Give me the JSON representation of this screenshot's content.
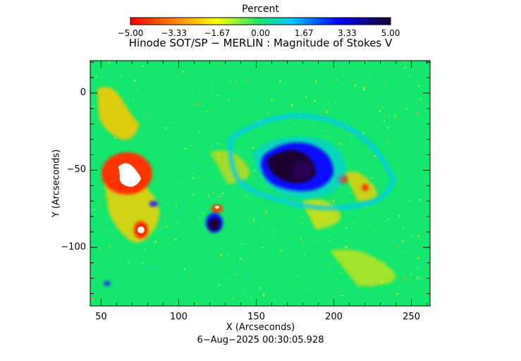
{
  "colorbar": {
    "title": "Percent",
    "tick_labels": [
      "−5.00",
      "−3.33",
      "−1.67",
      "0.00",
      "1.67",
      "3.33",
      "5.00"
    ],
    "tick_values": [
      -5.0,
      -3.33,
      -1.67,
      0.0,
      1.67,
      3.33,
      5.0
    ]
  },
  "chart_data": {
    "type": "heatmap",
    "title": "Hinode SOT/SP − MERLIN : Magnitude of Stokes V",
    "xlabel": "X (Arcseconds)",
    "ylabel": "Y (Arcseconds)",
    "xlim": [
      43,
      262
    ],
    "ylim": [
      -138,
      21
    ],
    "x_ticks": [
      50,
      100,
      150,
      200,
      250
    ],
    "x_tick_labels": [
      "50",
      "100",
      "150",
      "200",
      "250"
    ],
    "y_ticks": [
      0,
      -50,
      -100
    ],
    "y_tick_labels": [
      "0",
      "−50",
      "−100"
    ],
    "color_range": [
      -5.0,
      5.0
    ],
    "colormap": [
      "#ff0000",
      "#ff8c00",
      "#ffff00",
      "#14e66e",
      "#00c8ff",
      "#0000ff",
      "#1a0033"
    ],
    "background_color": "#14e66e",
    "features": [
      {
        "name": "positive-polarity-region",
        "x": 67,
        "y": -52,
        "value": -5.0
      },
      {
        "name": "positive-polarity-spot",
        "x": 73,
        "y": -89,
        "value": -5.0
      },
      {
        "name": "negative-polarity-sunspot",
        "x": 173,
        "y": -48,
        "value": 5.0
      },
      {
        "name": "negative-polarity-spot",
        "x": 121,
        "y": -86,
        "value": 4.2
      }
    ]
  },
  "footer": {
    "timestamp": "6−Aug−2025 00:30:05.928"
  }
}
